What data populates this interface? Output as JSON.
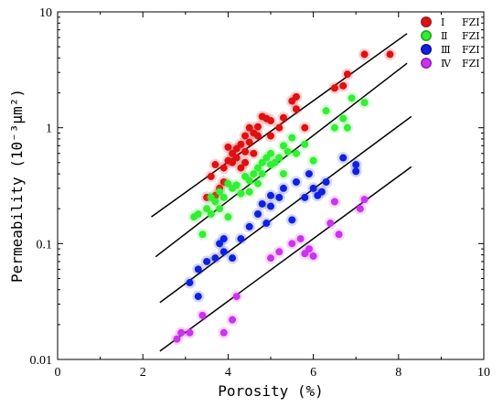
{
  "chart_data": {
    "type": "scatter",
    "title": "",
    "xlabel": "Porosity (%)",
    "ylabel": "Permeability (10⁻³μm²)",
    "xlim": [
      0,
      10
    ],
    "ylim": [
      0.01,
      10
    ],
    "y_scale": "log",
    "grid": false,
    "legend_position": "top-right",
    "x_ticks": [
      "0",
      "2",
      "4",
      "6",
      "8",
      "10"
    ],
    "y_ticks": [
      "0.01",
      "0.1",
      "1",
      "10"
    ],
    "legend_suffix": "FZI",
    "series": [
      {
        "name": "Ⅰ",
        "color": "#e01010",
        "marker_edge": "#a02020",
        "points": [
          [
            3.6,
            0.38
          ],
          [
            3.5,
            0.25
          ],
          [
            3.7,
            0.26
          ],
          [
            3.8,
            0.3
          ],
          [
            3.7,
            0.48
          ],
          [
            3.9,
            0.34
          ],
          [
            3.9,
            0.45
          ],
          [
            4.0,
            0.52
          ],
          [
            4.0,
            0.68
          ],
          [
            4.1,
            0.5
          ],
          [
            4.1,
            0.6
          ],
          [
            4.2,
            0.55
          ],
          [
            4.2,
            0.66
          ],
          [
            4.3,
            0.45
          ],
          [
            4.3,
            0.72
          ],
          [
            4.4,
            0.5
          ],
          [
            4.4,
            0.62
          ],
          [
            4.4,
            0.85
          ],
          [
            4.5,
            0.75
          ],
          [
            4.5,
            1.0
          ],
          [
            4.6,
            0.6
          ],
          [
            4.6,
            0.9
          ],
          [
            4.7,
            1.02
          ],
          [
            4.7,
            0.85
          ],
          [
            4.8,
            1.25
          ],
          [
            4.9,
            1.2
          ],
          [
            5.0,
            0.85
          ],
          [
            5.0,
            1.15
          ],
          [
            5.2,
            1.0
          ],
          [
            5.3,
            1.22
          ],
          [
            5.5,
            1.7
          ],
          [
            5.6,
            1.85
          ],
          [
            5.6,
            1.45
          ],
          [
            5.8,
            1.0
          ],
          [
            6.5,
            2.2
          ],
          [
            6.7,
            2.3
          ],
          [
            6.8,
            2.9
          ],
          [
            7.2,
            4.3
          ],
          [
            7.8,
            4.3
          ]
        ]
      },
      {
        "name": "Ⅱ",
        "color": "#33ee33",
        "marker_edge": "#22aa22",
        "points": [
          [
            3.2,
            0.17
          ],
          [
            3.3,
            0.18
          ],
          [
            3.4,
            0.12
          ],
          [
            3.5,
            0.2
          ],
          [
            3.6,
            0.18
          ],
          [
            3.6,
            0.25
          ],
          [
            3.7,
            0.23
          ],
          [
            3.8,
            0.2
          ],
          [
            3.8,
            0.28
          ],
          [
            3.9,
            0.25
          ],
          [
            4.0,
            0.33
          ],
          [
            4.0,
            0.17
          ],
          [
            4.1,
            0.3
          ],
          [
            4.2,
            0.32
          ],
          [
            4.3,
            0.27
          ],
          [
            4.4,
            0.38
          ],
          [
            4.5,
            0.35
          ],
          [
            4.5,
            0.28
          ],
          [
            4.6,
            0.4
          ],
          [
            4.7,
            0.45
          ],
          [
            4.7,
            0.33
          ],
          [
            4.8,
            0.5
          ],
          [
            4.8,
            0.4
          ],
          [
            4.9,
            0.55
          ],
          [
            5.0,
            0.48
          ],
          [
            5.0,
            0.6
          ],
          [
            5.1,
            0.5
          ],
          [
            5.2,
            0.55
          ],
          [
            5.3,
            0.7
          ],
          [
            5.3,
            0.4
          ],
          [
            5.4,
            0.62
          ],
          [
            5.5,
            0.82
          ],
          [
            5.6,
            0.6
          ],
          [
            5.8,
            0.72
          ],
          [
            6.0,
            0.52
          ],
          [
            6.3,
            1.4
          ],
          [
            6.5,
            1.0
          ],
          [
            6.7,
            1.2
          ],
          [
            6.8,
            1.0
          ],
          [
            6.9,
            1.8
          ],
          [
            7.2,
            1.65
          ]
        ]
      },
      {
        "name": "Ⅲ",
        "color": "#1020e0",
        "marker_edge": "#1010a0",
        "points": [
          [
            3.1,
            0.046
          ],
          [
            3.3,
            0.06
          ],
          [
            3.3,
            0.035
          ],
          [
            3.5,
            0.07
          ],
          [
            3.7,
            0.075
          ],
          [
            3.8,
            0.1
          ],
          [
            3.9,
            0.085
          ],
          [
            3.9,
            0.11
          ],
          [
            4.1,
            0.075
          ],
          [
            4.3,
            0.11
          ],
          [
            4.5,
            0.14
          ],
          [
            4.7,
            0.18
          ],
          [
            4.8,
            0.22
          ],
          [
            4.9,
            0.15
          ],
          [
            5.0,
            0.21
          ],
          [
            5.0,
            0.26
          ],
          [
            5.2,
            0.25
          ],
          [
            5.3,
            0.3
          ],
          [
            5.5,
            0.16
          ],
          [
            5.6,
            0.34
          ],
          [
            5.8,
            0.25
          ],
          [
            5.9,
            0.4
          ],
          [
            6.0,
            0.3
          ],
          [
            6.1,
            0.26
          ],
          [
            6.2,
            0.28
          ],
          [
            6.3,
            0.34
          ],
          [
            6.7,
            0.55
          ],
          [
            7.0,
            0.42
          ],
          [
            7.0,
            0.48
          ]
        ]
      },
      {
        "name": "Ⅳ",
        "color": "#cc33ee",
        "marker_edge": "#9922bb",
        "points": [
          [
            2.8,
            0.015
          ],
          [
            2.9,
            0.017
          ],
          [
            3.1,
            0.017
          ],
          [
            3.4,
            0.024
          ],
          [
            3.9,
            0.017
          ],
          [
            4.1,
            0.022
          ],
          [
            4.2,
            0.035
          ],
          [
            5.0,
            0.075
          ],
          [
            5.2,
            0.085
          ],
          [
            5.5,
            0.1
          ],
          [
            5.7,
            0.11
          ],
          [
            5.8,
            0.082
          ],
          [
            5.9,
            0.09
          ],
          [
            6.0,
            0.078
          ],
          [
            6.4,
            0.15
          ],
          [
            6.5,
            0.23
          ],
          [
            6.6,
            0.12
          ],
          [
            7.1,
            0.2
          ],
          [
            7.2,
            0.24
          ]
        ]
      }
    ],
    "trend_lines": [
      {
        "series": "Ⅰ",
        "from": [
          2.2,
          0.17
        ],
        "to": [
          8.2,
          6.5
        ]
      },
      {
        "series": "Ⅱ",
        "from": [
          2.3,
          0.077
        ],
        "to": [
          8.2,
          3.6
        ]
      },
      {
        "series": "Ⅲ",
        "from": [
          2.4,
          0.031
        ],
        "to": [
          8.3,
          1.25
        ]
      },
      {
        "series": "Ⅳ",
        "from": [
          2.4,
          0.0118
        ],
        "to": [
          8.3,
          0.46
        ]
      }
    ]
  }
}
